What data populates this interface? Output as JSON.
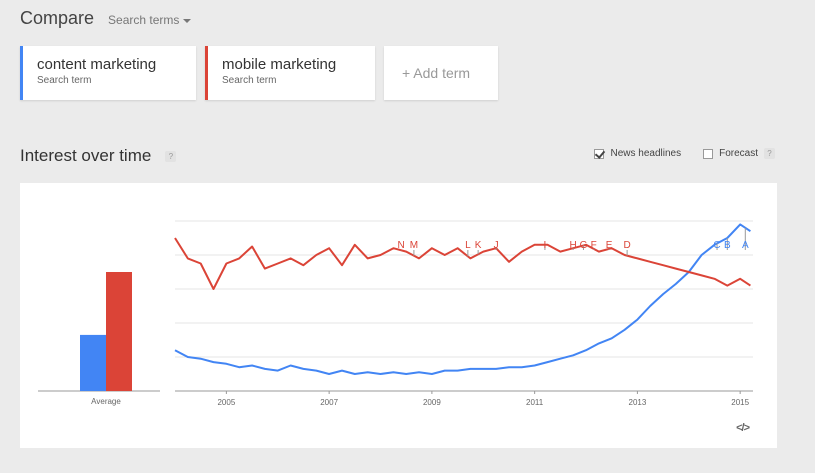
{
  "header": {
    "title": "Compare",
    "search_terms_label": "Search terms"
  },
  "terms": [
    {
      "name": "content marketing",
      "sub": "Search term",
      "color": "#4285f4"
    },
    {
      "name": "mobile marketing",
      "sub": "Search term",
      "color": "#db4437"
    }
  ],
  "add_term_label": "+ Add term",
  "section": {
    "title": "Interest over time",
    "help": "?"
  },
  "options": {
    "news_headlines": "News headlines",
    "news_checked": true,
    "forecast": "Forecast",
    "forecast_checked": false,
    "help": "?"
  },
  "embed_label": "</>",
  "chart_data": [
    {
      "type": "bar",
      "categories": [
        "Average"
      ],
      "series": [
        {
          "name": "content marketing",
          "color": "#4285f4",
          "values": [
            33
          ]
        },
        {
          "name": "mobile marketing",
          "color": "#db4437",
          "values": [
            70
          ]
        }
      ],
      "ylim": [
        0,
        100
      ]
    },
    {
      "type": "line",
      "xlim": [
        2004,
        2015.25
      ],
      "ylim": [
        0,
        100
      ],
      "x_ticks": [
        "2005",
        "2007",
        "2009",
        "2011",
        "2013",
        "2015"
      ],
      "grid": true,
      "series": [
        {
          "name": "content marketing",
          "color": "#4285f4",
          "points": [
            [
              2004,
              24
            ],
            [
              2004.25,
              20
            ],
            [
              2004.5,
              19
            ],
            [
              2004.75,
              17
            ],
            [
              2005,
              16
            ],
            [
              2005.25,
              14
            ],
            [
              2005.5,
              15
            ],
            [
              2005.75,
              13
            ],
            [
              2006,
              12
            ],
            [
              2006.25,
              15
            ],
            [
              2006.5,
              13
            ],
            [
              2006.75,
              12
            ],
            [
              2007,
              10
            ],
            [
              2007.25,
              12
            ],
            [
              2007.5,
              10
            ],
            [
              2007.75,
              11
            ],
            [
              2008,
              10
            ],
            [
              2008.25,
              11
            ],
            [
              2008.5,
              10
            ],
            [
              2008.75,
              11
            ],
            [
              2009,
              10
            ],
            [
              2009.25,
              12
            ],
            [
              2009.5,
              12
            ],
            [
              2009.75,
              13
            ],
            [
              2010,
              13
            ],
            [
              2010.25,
              13
            ],
            [
              2010.5,
              14
            ],
            [
              2010.75,
              14
            ],
            [
              2011,
              15
            ],
            [
              2011.25,
              17
            ],
            [
              2011.5,
              19
            ],
            [
              2011.75,
              21
            ],
            [
              2012,
              24
            ],
            [
              2012.25,
              28
            ],
            [
              2012.5,
              31
            ],
            [
              2012.75,
              36
            ],
            [
              2013,
              42
            ],
            [
              2013.25,
              50
            ],
            [
              2013.5,
              57
            ],
            [
              2013.75,
              63
            ],
            [
              2014,
              70
            ],
            [
              2014.25,
              80
            ],
            [
              2014.5,
              86
            ],
            [
              2014.75,
              90
            ],
            [
              2015,
              98
            ],
            [
              2015.2,
              94
            ]
          ]
        },
        {
          "name": "mobile marketing",
          "color": "#db4437",
          "points": [
            [
              2004,
              90
            ],
            [
              2004.25,
              78
            ],
            [
              2004.5,
              75
            ],
            [
              2004.75,
              60
            ],
            [
              2005,
              75
            ],
            [
              2005.25,
              78
            ],
            [
              2005.5,
              85
            ],
            [
              2005.75,
              72
            ],
            [
              2006,
              75
            ],
            [
              2006.25,
              78
            ],
            [
              2006.5,
              74
            ],
            [
              2006.75,
              80
            ],
            [
              2007,
              84
            ],
            [
              2007.25,
              74
            ],
            [
              2007.5,
              86
            ],
            [
              2007.75,
              78
            ],
            [
              2008,
              80
            ],
            [
              2008.25,
              84
            ],
            [
              2008.5,
              82
            ],
            [
              2008.75,
              78
            ],
            [
              2009,
              84
            ],
            [
              2009.25,
              80
            ],
            [
              2009.5,
              84
            ],
            [
              2009.75,
              78
            ],
            [
              2010,
              82
            ],
            [
              2010.25,
              84
            ],
            [
              2010.5,
              76
            ],
            [
              2010.75,
              82
            ],
            [
              2011,
              86
            ],
            [
              2011.25,
              86
            ],
            [
              2011.5,
              82
            ],
            [
              2011.75,
              84
            ],
            [
              2012,
              86
            ],
            [
              2012.25,
              82
            ],
            [
              2012.5,
              84
            ],
            [
              2012.75,
              80
            ],
            [
              2013,
              78
            ],
            [
              2013.25,
              76
            ],
            [
              2013.5,
              74
            ],
            [
              2013.75,
              72
            ],
            [
              2014,
              70
            ],
            [
              2014.25,
              68
            ],
            [
              2014.5,
              66
            ],
            [
              2014.75,
              62
            ],
            [
              2015,
              66
            ],
            [
              2015.2,
              62
            ]
          ]
        }
      ],
      "annotations": [
        {
          "label": "N",
          "x": 2008.4,
          "series": 1
        },
        {
          "label": "M",
          "x": 2008.65,
          "series": 1
        },
        {
          "label": "L",
          "x": 2009.7,
          "series": 1
        },
        {
          "label": "K",
          "x": 2009.9,
          "series": 1
        },
        {
          "label": "J",
          "x": 2010.25,
          "series": 1
        },
        {
          "label": "I",
          "x": 2011.2,
          "series": 1
        },
        {
          "label": "H",
          "x": 2011.75,
          "series": 1
        },
        {
          "label": "G",
          "x": 2011.95,
          "series": 1
        },
        {
          "label": "F",
          "x": 2012.15,
          "series": 1
        },
        {
          "label": "E",
          "x": 2012.45,
          "series": 1
        },
        {
          "label": "D",
          "x": 2012.8,
          "series": 1
        },
        {
          "label": "C",
          "x": 2014.55,
          "series": 0
        },
        {
          "label": "B",
          "x": 2014.75,
          "series": 0
        },
        {
          "label": "A",
          "x": 2015.1,
          "series": 0
        }
      ]
    }
  ]
}
